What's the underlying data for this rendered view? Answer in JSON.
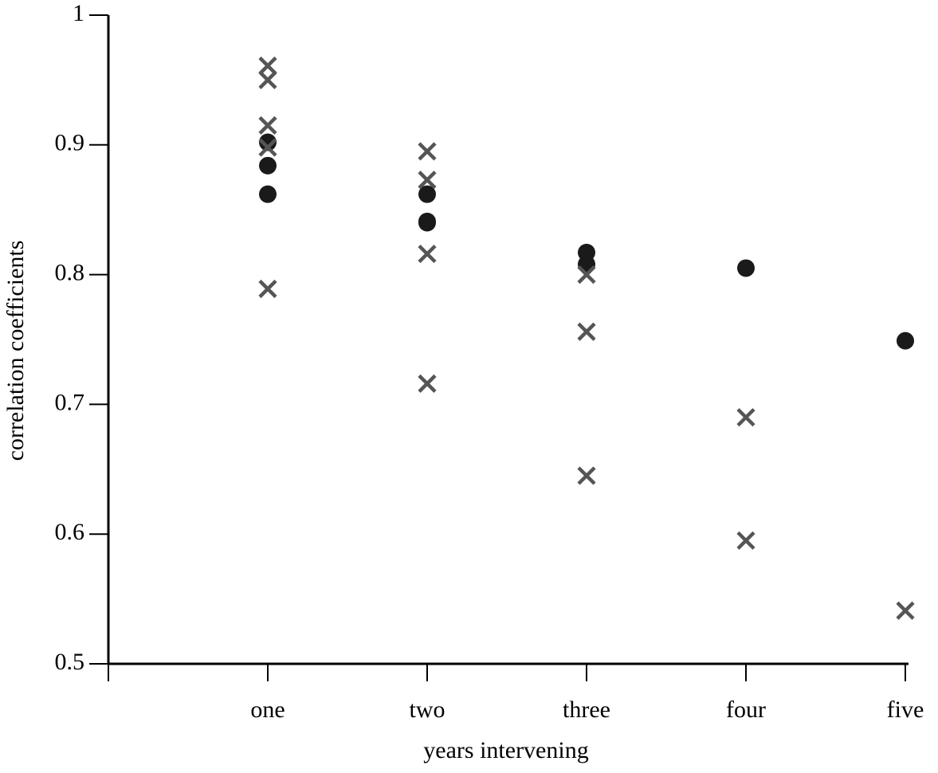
{
  "chart_data": {
    "type": "scatter",
    "x_label": "years intervening",
    "y_label": "correlation coefficients",
    "categories": [
      null,
      "one",
      "two",
      "three",
      "four",
      "five"
    ],
    "ylim": [
      0.5,
      1
    ],
    "yticks": [
      0.5,
      0.6,
      0.7,
      0.8,
      0.9,
      1
    ],
    "series": [
      {
        "marker": "circle",
        "color": "#1a1a1a",
        "x": [
          "one",
          "one",
          "one",
          "two",
          "two",
          "two",
          "three",
          "three",
          "four",
          "five"
        ],
        "values": [
          0.902,
          0.884,
          0.862,
          0.862,
          0.841,
          0.84,
          0.817,
          0.808,
          0.805,
          0.749
        ]
      },
      {
        "marker": "cross",
        "color": "#555555",
        "x": [
          "one",
          "one",
          "one",
          "one",
          "one",
          "two",
          "two",
          "two",
          "two",
          "three",
          "three",
          "three",
          "four",
          "four",
          "five"
        ],
        "values": [
          0.961,
          0.95,
          0.915,
          0.898,
          0.789,
          0.895,
          0.873,
          0.816,
          0.716,
          0.8,
          0.756,
          0.645,
          0.69,
          0.595,
          0.541
        ]
      }
    ]
  }
}
